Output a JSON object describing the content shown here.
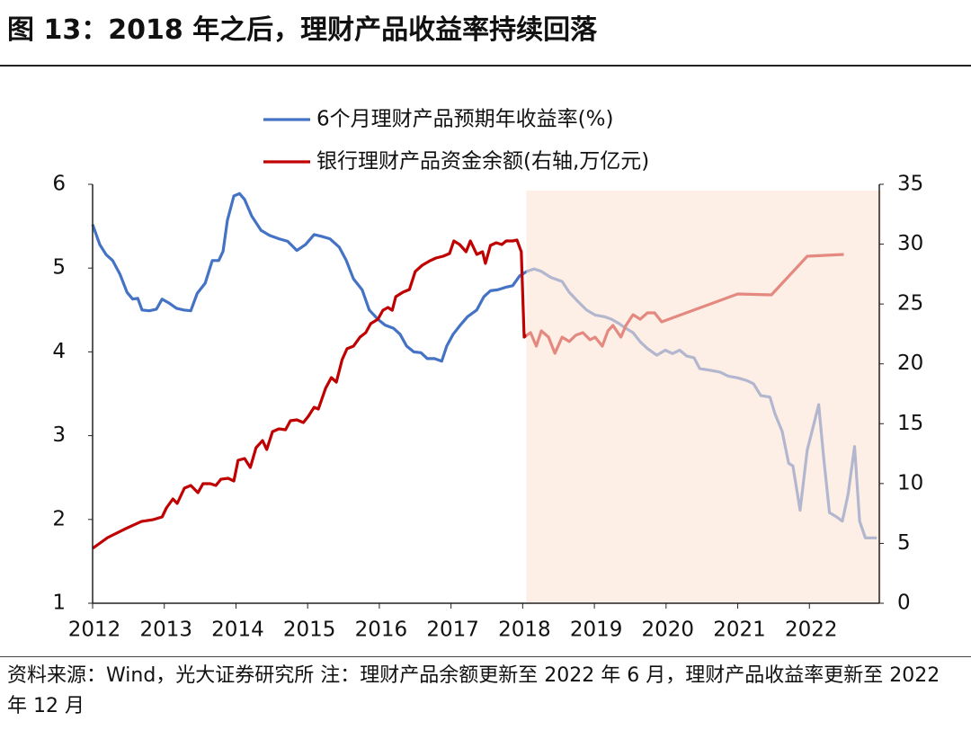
{
  "chart_data": {
    "type": "line",
    "title": "图 13：2018 年之后，理财产品收益率持续回落",
    "source": "资料来源：Wind，光大证券研究所 注：理财产品余额更新至 2022 年 6 月，理财产品收益率更新至 2022 年 12 月",
    "xlim": [
      2012,
      2023
    ],
    "xticks": [
      2012,
      2013,
      2014,
      2015,
      2016,
      2017,
      2018,
      2019,
      2020,
      2021,
      2022
    ],
    "ylim": [
      1,
      6
    ],
    "yticks": [
      1,
      2,
      3,
      4,
      5,
      6
    ],
    "y2lim": [
      0,
      35
    ],
    "y2ticks": [
      0,
      5,
      10,
      15,
      20,
      25,
      30,
      35
    ],
    "shade_x": [
      2018.05,
      2023
    ],
    "shade_color": "#fbe5d6",
    "legend": "top",
    "series": [
      {
        "name": "6个月理财产品预期年收益率(%)",
        "color": "#4472c4",
        "x": [
          2012.0,
          2012.1,
          2012.19,
          2012.28,
          2012.38,
          2012.48,
          2012.56,
          2012.63,
          2012.69,
          2012.79,
          2012.89,
          2012.97,
          2013.07,
          2013.17,
          2013.27,
          2013.37,
          2013.46,
          2013.57,
          2013.67,
          2013.76,
          2013.82,
          2013.88,
          2013.97,
          2014.05,
          2014.12,
          2014.22,
          2014.35,
          2014.47,
          2014.6,
          2014.72,
          2014.85,
          2014.97,
          2015.09,
          2015.19,
          2015.31,
          2015.44,
          2015.54,
          2015.64,
          2015.76,
          2015.86,
          2015.98,
          2016.08,
          2016.2,
          2016.29,
          2016.38,
          2016.48,
          2016.58,
          2016.67,
          2016.77,
          2016.87,
          2016.94,
          2017.03,
          2017.13,
          2017.23,
          2017.36,
          2017.46,
          2017.55,
          2017.65,
          2017.76,
          2017.86,
          2017.96,
          2018.06,
          2018.16,
          2018.26,
          2018.39,
          2018.55,
          2018.65,
          2018.76,
          2018.89,
          2019.01,
          2019.14,
          2019.24,
          2019.34,
          2019.44,
          2019.54,
          2019.64,
          2019.74,
          2019.87,
          2019.99,
          2020.09,
          2020.19,
          2020.29,
          2020.39,
          2020.47,
          2020.62,
          2020.75,
          2020.87,
          2021.0,
          2021.12,
          2021.22,
          2021.32,
          2021.45,
          2021.52,
          2021.62,
          2021.71,
          2021.77,
          2021.87,
          2021.97,
          2022.05,
          2022.13,
          2022.2,
          2022.28,
          2022.38,
          2022.46,
          2022.54,
          2022.63,
          2022.7,
          2022.78,
          2022.94
        ],
        "values": [
          5.52,
          5.28,
          5.16,
          5.09,
          4.93,
          4.71,
          4.63,
          4.64,
          4.5,
          4.49,
          4.51,
          4.63,
          4.58,
          4.52,
          4.5,
          4.49,
          4.7,
          4.82,
          5.09,
          5.09,
          5.2,
          5.57,
          5.86,
          5.89,
          5.82,
          5.62,
          5.45,
          5.39,
          5.35,
          5.32,
          5.21,
          5.28,
          5.4,
          5.38,
          5.35,
          5.25,
          5.09,
          4.87,
          4.74,
          4.5,
          4.39,
          4.32,
          4.28,
          4.21,
          4.07,
          4.0,
          3.99,
          3.92,
          3.92,
          3.89,
          4.07,
          4.21,
          4.32,
          4.42,
          4.5,
          4.66,
          4.73,
          4.74,
          4.77,
          4.79,
          4.91,
          4.96,
          4.99,
          4.96,
          4.89,
          4.84,
          4.71,
          4.61,
          4.5,
          4.44,
          4.42,
          4.39,
          4.34,
          4.28,
          4.23,
          4.12,
          4.04,
          3.96,
          4.02,
          3.98,
          4.02,
          3.95,
          3.93,
          3.8,
          3.78,
          3.76,
          3.71,
          3.69,
          3.66,
          3.62,
          3.48,
          3.46,
          3.26,
          3.05,
          2.67,
          2.64,
          2.11,
          2.83,
          3.1,
          3.37,
          2.73,
          2.08,
          2.03,
          1.98,
          2.3,
          2.87,
          1.98,
          1.78,
          1.78
        ]
      },
      {
        "name": "银行理财产品资金余额(右轴,万亿元)",
        "color": "#c00000",
        "axis": "y2",
        "x": [
          2012.0,
          2012.21,
          2012.46,
          2012.68,
          2012.84,
          2012.97,
          2013.03,
          2013.12,
          2013.18,
          2013.28,
          2013.37,
          2013.47,
          2013.54,
          2013.64,
          2013.72,
          2013.79,
          2013.89,
          2013.97,
          2014.03,
          2014.12,
          2014.2,
          2014.28,
          2014.37,
          2014.43,
          2014.51,
          2014.6,
          2014.69,
          2014.76,
          2014.85,
          2014.94,
          2015.01,
          2015.09,
          2015.15,
          2015.25,
          2015.33,
          2015.4,
          2015.48,
          2015.55,
          2015.64,
          2015.73,
          2015.81,
          2015.88,
          2015.98,
          2016.05,
          2016.12,
          2016.18,
          2016.23,
          2016.33,
          2016.42,
          2016.5,
          2016.6,
          2016.71,
          2016.79,
          2016.89,
          2016.98,
          2017.04,
          2017.12,
          2017.21,
          2017.27,
          2017.36,
          2017.44,
          2017.48,
          2017.55,
          2017.63,
          2017.71,
          2017.77,
          2017.86,
          2017.92,
          2017.98,
          2018.02,
          2018.11,
          2018.19,
          2018.26,
          2018.36,
          2018.45,
          2018.55,
          2018.65,
          2018.74,
          2018.84,
          2018.94,
          2019.01,
          2019.11,
          2019.19,
          2019.26,
          2019.37,
          2019.44,
          2019.54,
          2019.64,
          2019.74,
          2019.84,
          2019.94,
          2021.0,
          2021.47,
          2021.97,
          2022.48
        ],
        "values": [
          4.58,
          5.48,
          6.23,
          6.83,
          6.98,
          7.21,
          7.96,
          8.71,
          8.34,
          9.61,
          9.84,
          9.24,
          9.99,
          9.99,
          9.84,
          10.36,
          10.44,
          10.21,
          11.94,
          12.09,
          11.34,
          12.99,
          13.59,
          12.84,
          14.34,
          14.57,
          14.49,
          15.25,
          15.32,
          15.1,
          15.62,
          16.37,
          16.22,
          17.95,
          18.85,
          18.48,
          20.35,
          21.26,
          21.48,
          22.23,
          22.61,
          23.36,
          23.73,
          24.48,
          24.71,
          24.48,
          25.61,
          25.99,
          26.21,
          27.71,
          28.24,
          28.62,
          28.84,
          28.99,
          29.22,
          30.27,
          29.97,
          29.37,
          30.27,
          29.14,
          29.37,
          28.39,
          29.89,
          30.12,
          29.97,
          30.27,
          30.27,
          30.34,
          29.37,
          22.23,
          22.61,
          21.48,
          22.76,
          22.23,
          20.88,
          22.23,
          21.86,
          22.39,
          22.61,
          22.01,
          22.23,
          21.48,
          22.76,
          23.21,
          22.23,
          23.21,
          24.11,
          23.73,
          24.26,
          24.26,
          23.51,
          25.84,
          25.76,
          28.99,
          29.14
        ]
      }
    ]
  }
}
